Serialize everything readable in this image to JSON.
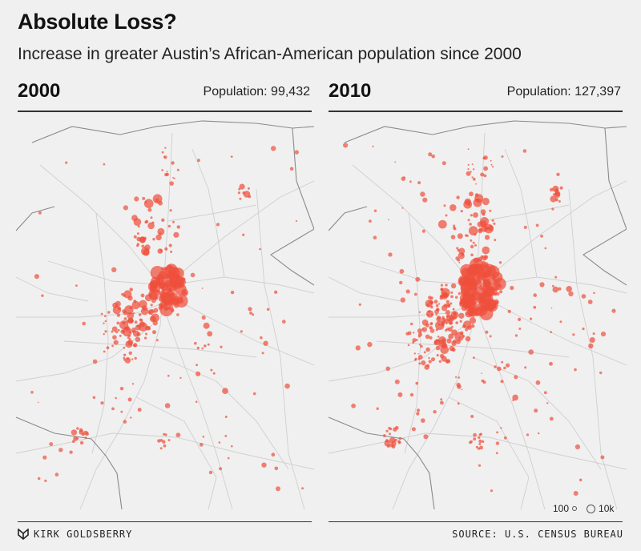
{
  "header": {
    "title": "Absolute Loss?",
    "subtitle": "Increase in greater Austin’s African-American population since 2000"
  },
  "panels": [
    {
      "year": "2000",
      "population": "Population: 99,432"
    },
    {
      "year": "2010",
      "population": "Population: 127,397"
    }
  ],
  "legend": {
    "small_label": "100",
    "large_label": "10k"
  },
  "footer": {
    "credit": "KIRK GOLDSBERRY",
    "source": "SOURCE: U.S. CENSUS BUREAU"
  },
  "colors": {
    "dot_fill": "#ee4f3c",
    "road": "#cfcfcf",
    "border": "#8a8a8a",
    "background": "#f0f0f0"
  }
}
